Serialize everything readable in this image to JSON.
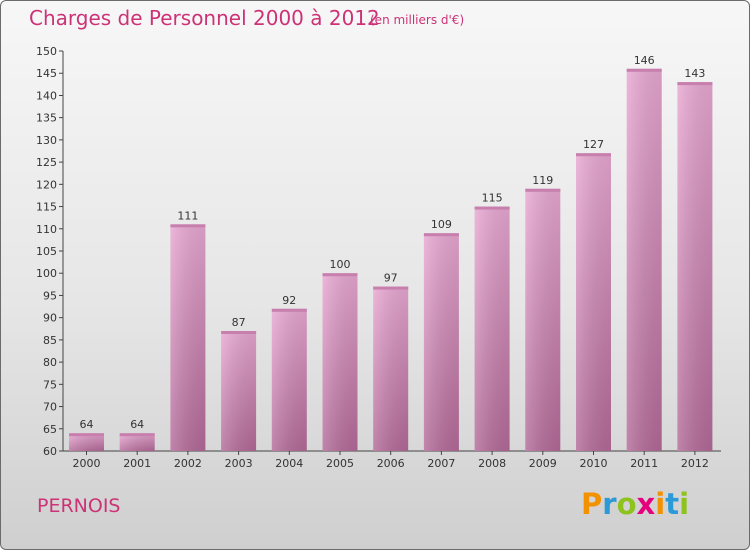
{
  "header": {
    "title": "Charges de Personnel 2000 à 2012",
    "subtitle": "(en milliers d'€)"
  },
  "footer": {
    "commune": "PERNOIS",
    "logo_letters": [
      "P",
      "r",
      "o",
      "x",
      "i",
      "t",
      "i"
    ],
    "logo_colors": [
      "#f39200",
      "#2c9ad6",
      "#8dc21f",
      "#e6007e",
      "#f39200",
      "#2c9ad6",
      "#8dc21f"
    ]
  },
  "chart_data": {
    "type": "bar",
    "title": "Charges de Personnel 2000 à 2012",
    "subtitle": "(en milliers d'€)",
    "categories": [
      "2000",
      "2001",
      "2002",
      "2003",
      "2004",
      "2005",
      "2006",
      "2007",
      "2008",
      "2009",
      "2010",
      "2011",
      "2012"
    ],
    "values": [
      64,
      64,
      111,
      87,
      92,
      100,
      97,
      109,
      115,
      119,
      127,
      146,
      143
    ],
    "ylim": [
      60,
      150
    ],
    "yticks": [
      60,
      65,
      70,
      75,
      80,
      85,
      90,
      95,
      100,
      105,
      110,
      115,
      120,
      125,
      130,
      135,
      140,
      145,
      150
    ],
    "bar_color_top": "#e8a8d2",
    "bar_color_bottom": "#b36a98",
    "grid": false,
    "legend": "none"
  }
}
